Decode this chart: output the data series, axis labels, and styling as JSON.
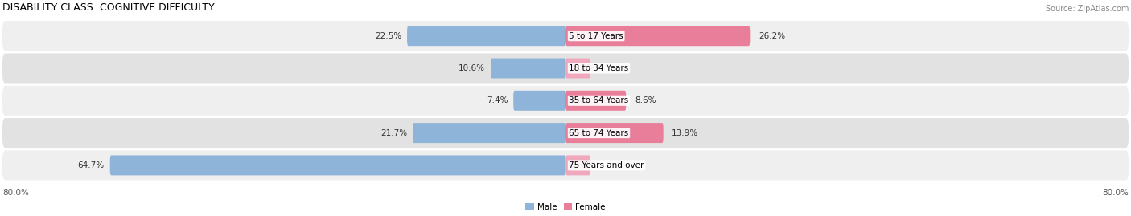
{
  "title": "DISABILITY CLASS: COGNITIVE DIFFICULTY",
  "source": "Source: ZipAtlas.com",
  "categories": [
    "5 to 17 Years",
    "18 to 34 Years",
    "35 to 64 Years",
    "65 to 74 Years",
    "75 Years and over"
  ],
  "male_values": [
    22.5,
    10.6,
    7.4,
    21.7,
    64.7
  ],
  "female_values": [
    26.2,
    0.0,
    8.6,
    13.9,
    0.0
  ],
  "male_color": "#8fb4d9",
  "female_color": "#e87e99",
  "female_color_light": "#f0a8bc",
  "row_bg_odd": "#efefef",
  "row_bg_even": "#e2e2e2",
  "xlim_left": -80.0,
  "xlim_right": 80.0,
  "x_axis_left_label": "80.0%",
  "x_axis_right_label": "80.0%",
  "title_fontsize": 9,
  "label_fontsize": 7.5,
  "category_fontsize": 7.5,
  "value_fontsize": 7.5,
  "source_fontsize": 7
}
